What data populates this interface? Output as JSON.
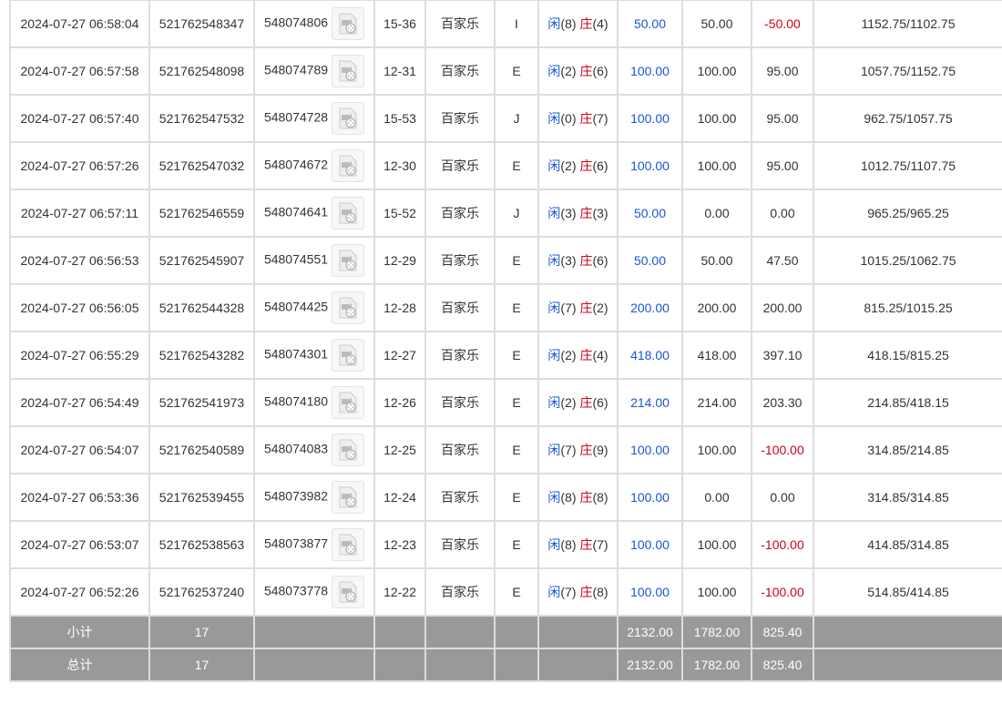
{
  "colors": {
    "blue": "#1a56d6",
    "red": "#d0021b",
    "footer_bg": "#999999"
  },
  "rows": [
    {
      "time": "2024-07-27 06:58:04",
      "bet_id": "521762548347",
      "round": "548074806",
      "table": "15-36",
      "game": "百家乐",
      "type": "I",
      "player_label": "闲",
      "player": "(8)",
      "banker_label": "庄",
      "banker": "(4)",
      "bet": "50.00",
      "valid": "50.00",
      "win": "-50.00",
      "win_neg": true,
      "balance": "1152.75/1102.75"
    },
    {
      "time": "2024-07-27 06:57:58",
      "bet_id": "521762548098",
      "round": "548074789",
      "table": "12-31",
      "game": "百家乐",
      "type": "E",
      "player_label": "闲",
      "player": "(2)",
      "banker_label": "庄",
      "banker": "(6)",
      "bet": "100.00",
      "valid": "100.00",
      "win": "95.00",
      "win_neg": false,
      "balance": "1057.75/1152.75"
    },
    {
      "time": "2024-07-27 06:57:40",
      "bet_id": "521762547532",
      "round": "548074728",
      "table": "15-53",
      "game": "百家乐",
      "type": "J",
      "player_label": "闲",
      "player": "(0)",
      "banker_label": "庄",
      "banker": "(7)",
      "bet": "100.00",
      "valid": "100.00",
      "win": "95.00",
      "win_neg": false,
      "balance": "962.75/1057.75"
    },
    {
      "time": "2024-07-27 06:57:26",
      "bet_id": "521762547032",
      "round": "548074672",
      "table": "12-30",
      "game": "百家乐",
      "type": "E",
      "player_label": "闲",
      "player": "(2)",
      "banker_label": "庄",
      "banker": "(6)",
      "bet": "100.00",
      "valid": "100.00",
      "win": "95.00",
      "win_neg": false,
      "balance": "1012.75/1107.75"
    },
    {
      "time": "2024-07-27 06:57:11",
      "bet_id": "521762546559",
      "round": "548074641",
      "table": "15-52",
      "game": "百家乐",
      "type": "J",
      "player_label": "闲",
      "player": "(3)",
      "banker_label": "庄",
      "banker": "(3)",
      "bet": "50.00",
      "valid": "0.00",
      "win": "0.00",
      "win_neg": false,
      "balance": "965.25/965.25"
    },
    {
      "time": "2024-07-27 06:56:53",
      "bet_id": "521762545907",
      "round": "548074551",
      "table": "12-29",
      "game": "百家乐",
      "type": "E",
      "player_label": "闲",
      "player": "(3)",
      "banker_label": "庄",
      "banker": "(6)",
      "bet": "50.00",
      "valid": "50.00",
      "win": "47.50",
      "win_neg": false,
      "balance": "1015.25/1062.75"
    },
    {
      "time": "2024-07-27 06:56:05",
      "bet_id": "521762544328",
      "round": "548074425",
      "table": "12-28",
      "game": "百家乐",
      "type": "E",
      "player_label": "闲",
      "player": "(7)",
      "banker_label": "庄",
      "banker": "(2)",
      "bet": "200.00",
      "valid": "200.00",
      "win": "200.00",
      "win_neg": false,
      "balance": "815.25/1015.25"
    },
    {
      "time": "2024-07-27 06:55:29",
      "bet_id": "521762543282",
      "round": "548074301",
      "table": "12-27",
      "game": "百家乐",
      "type": "E",
      "player_label": "闲",
      "player": "(2)",
      "banker_label": "庄",
      "banker": "(4)",
      "bet": "418.00",
      "valid": "418.00",
      "win": "397.10",
      "win_neg": false,
      "balance": "418.15/815.25"
    },
    {
      "time": "2024-07-27 06:54:49",
      "bet_id": "521762541973",
      "round": "548074180",
      "table": "12-26",
      "game": "百家乐",
      "type": "E",
      "player_label": "闲",
      "player": "(2)",
      "banker_label": "庄",
      "banker": "(6)",
      "bet": "214.00",
      "valid": "214.00",
      "win": "203.30",
      "win_neg": false,
      "balance": "214.85/418.15"
    },
    {
      "time": "2024-07-27 06:54:07",
      "bet_id": "521762540589",
      "round": "548074083",
      "table": "12-25",
      "game": "百家乐",
      "type": "E",
      "player_label": "闲",
      "player": "(7)",
      "banker_label": "庄",
      "banker": "(9)",
      "bet": "100.00",
      "valid": "100.00",
      "win": "-100.00",
      "win_neg": true,
      "balance": "314.85/214.85"
    },
    {
      "time": "2024-07-27 06:53:36",
      "bet_id": "521762539455",
      "round": "548073982",
      "table": "12-24",
      "game": "百家乐",
      "type": "E",
      "player_label": "闲",
      "player": "(8)",
      "banker_label": "庄",
      "banker": "(8)",
      "bet": "100.00",
      "valid": "0.00",
      "win": "0.00",
      "win_neg": false,
      "balance": "314.85/314.85"
    },
    {
      "time": "2024-07-27 06:53:07",
      "bet_id": "521762538563",
      "round": "548073877",
      "table": "12-23",
      "game": "百家乐",
      "type": "E",
      "player_label": "闲",
      "player": "(8)",
      "banker_label": "庄",
      "banker": "(7)",
      "bet": "100.00",
      "valid": "100.00",
      "win": "-100.00",
      "win_neg": true,
      "balance": "414.85/314.85"
    },
    {
      "time": "2024-07-27 06:52:26",
      "bet_id": "521762537240",
      "round": "548073778",
      "table": "12-22",
      "game": "百家乐",
      "type": "E",
      "player_label": "闲",
      "player": "(7)",
      "banker_label": "庄",
      "banker": "(8)",
      "bet": "100.00",
      "valid": "100.00",
      "win": "-100.00",
      "win_neg": true,
      "balance": "514.85/414.85"
    }
  ],
  "subtotal": {
    "label": "小计",
    "count": "17",
    "bet": "2132.00",
    "valid": "1782.00",
    "win": "825.40"
  },
  "total": {
    "label": "总计",
    "count": "17",
    "bet": "2132.00",
    "valid": "1782.00",
    "win": "825.40"
  }
}
